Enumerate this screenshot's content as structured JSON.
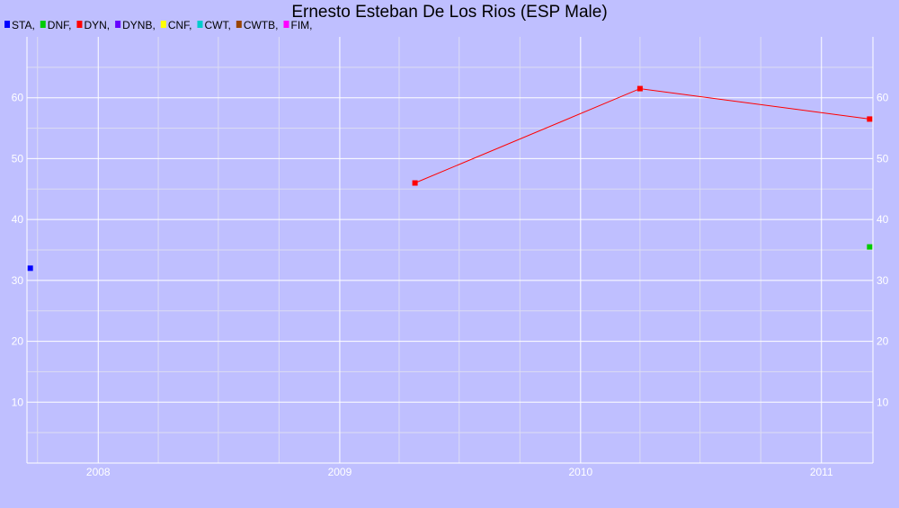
{
  "chart_data": {
    "type": "line",
    "title": "Ernesto Esteban De Los Rios (ESP Male)",
    "xlabel": "",
    "ylabel": "",
    "x_axis": {
      "kind": "date",
      "range": [
        "2007-09-15",
        "2011-03-20"
      ],
      "ticks": [
        {
          "label": "2008",
          "value": "2008-01-01"
        },
        {
          "label": "2009",
          "value": "2009-01-01"
        },
        {
          "label": "2010",
          "value": "2010-01-01"
        },
        {
          "label": "2011",
          "value": "2011-01-01"
        }
      ]
    },
    "y_axis": {
      "range": [
        0,
        70
      ],
      "ticks": [
        10,
        20,
        30,
        40,
        50,
        60
      ],
      "labels_both_sides": true
    },
    "grid": true,
    "legend_position": "top-left",
    "legend": [
      {
        "label": "STA,",
        "color": "#0000ff"
      },
      {
        "label": "DNF,",
        "color": "#00cc00"
      },
      {
        "label": "DYN,",
        "color": "#ff0000"
      },
      {
        "label": "DYNB,",
        "color": "#6600ff"
      },
      {
        "label": "CNF,",
        "color": "#ffff00"
      },
      {
        "label": "CWT,",
        "color": "#00cccc"
      },
      {
        "label": "CWTB,",
        "color": "#994400"
      },
      {
        "label": "FIM,",
        "color": "#ff00ff"
      }
    ],
    "series": [
      {
        "name": "STA",
        "color": "#0000ff",
        "connected": false,
        "points": [
          {
            "x": "2007-09-20",
            "y": 32
          }
        ]
      },
      {
        "name": "DNF",
        "color": "#00cc00",
        "connected": false,
        "points": [
          {
            "x": "2011-03-15",
            "y": 35.5
          }
        ]
      },
      {
        "name": "DYN",
        "color": "#ff0000",
        "connected": true,
        "points": [
          {
            "x": "2009-04-25",
            "y": 46
          },
          {
            "x": "2010-04-01",
            "y": 61.5
          },
          {
            "x": "2011-03-15",
            "y": 56.5
          }
        ]
      }
    ]
  }
}
